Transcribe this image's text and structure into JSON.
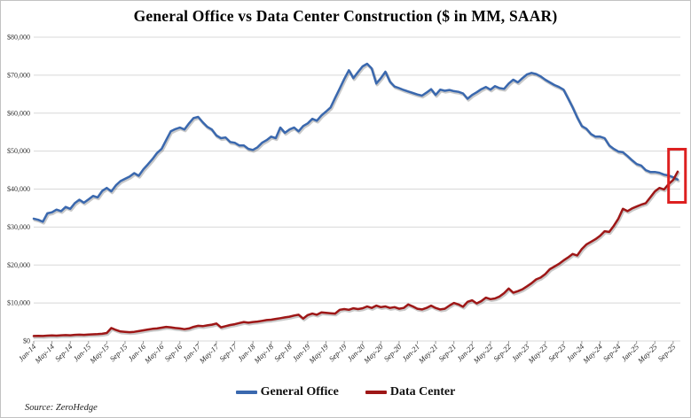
{
  "title": "General Office vs Data Center Construction ($ in MM, SAAR)",
  "source": "Source: ZeroHedge",
  "legend": [
    {
      "label": "General Office",
      "color": "#3a68ae"
    },
    {
      "label": "Data Center",
      "color": "#9e1717"
    }
  ],
  "chart_data": {
    "type": "line",
    "title": "General Office vs Data Center Construction ($ in MM, SAAR)",
    "xlabel": "",
    "ylabel": "",
    "x_unit": "month",
    "x_start": "Jan-14",
    "x_end": "Oct-25",
    "x_tick_every": 4,
    "x_tick_labels": [
      "Jan-14",
      "May-14",
      "Sep-14",
      "Jan-15",
      "May-15",
      "Sep-15",
      "Jan-16",
      "May-16",
      "Sep-16",
      "Jan-17",
      "May-17",
      "Sep-17",
      "Jan-18",
      "May-18",
      "Sep-18",
      "Jan-19",
      "May-19",
      "Sep-19",
      "Jan-20",
      "May-20",
      "Sep-20",
      "Jan-21",
      "May-21",
      "Sep-21",
      "Jan-22",
      "May-22",
      "Sep-22",
      "Jan-23",
      "May-23",
      "Sep-23",
      "Jan-24",
      "May-24",
      "Sep-24",
      "Jan-25",
      "May-25",
      "Sep-25"
    ],
    "ylim": [
      0,
      80000
    ],
    "y_tick_step": 10000,
    "y_tick_labels": [
      "$0",
      "$10,000",
      "$20,000",
      "$30,000",
      "$40,000",
      "$50,000",
      "$60,000",
      "$70,000",
      "$80,000"
    ],
    "grid": "horizontal",
    "gridline_color": "#d8d8d8",
    "legend_position": "bottom-center",
    "series": [
      {
        "name": "General Office",
        "color": "#3a68ae",
        "values": [
          32200,
          31900,
          31400,
          33600,
          33900,
          34600,
          34200,
          35300,
          34800,
          36300,
          37200,
          36400,
          37300,
          38200,
          37800,
          39500,
          40300,
          39400,
          41000,
          42100,
          42700,
          43300,
          44200,
          43500,
          45200,
          46500,
          47900,
          49500,
          50600,
          52900,
          55200,
          55800,
          56200,
          55700,
          57300,
          58700,
          59000,
          57600,
          56400,
          55700,
          54100,
          53400,
          53600,
          52400,
          52200,
          51500,
          51500,
          50600,
          50300,
          51000,
          52200,
          52900,
          53800,
          53400,
          56200,
          54800,
          55700,
          56200,
          55200,
          56600,
          57300,
          58500,
          58000,
          59400,
          60400,
          61500,
          64000,
          66500,
          69000,
          71300,
          69200,
          70800,
          72300,
          73000,
          71800,
          67800,
          69200,
          70900,
          68300,
          67000,
          66600,
          66100,
          65700,
          65300,
          64900,
          64600,
          65400,
          66300,
          64800,
          66200,
          65900,
          66100,
          65800,
          65600,
          65200,
          63800,
          64800,
          65500,
          66300,
          66900,
          66200,
          67100,
          66600,
          66400,
          67800,
          68800,
          68100,
          69200,
          70200,
          70600,
          70300,
          69700,
          68800,
          68100,
          67400,
          66900,
          66200,
          63900,
          61500,
          58900,
          56600,
          55900,
          54500,
          53800,
          53800,
          53400,
          51500,
          50600,
          49900,
          49700,
          48700,
          47600,
          46600,
          46200,
          45000,
          44500,
          44500,
          44300,
          43800,
          43600,
          43100,
          42500
        ]
      },
      {
        "name": "Data Center",
        "color": "#9e1717",
        "values": [
          1300,
          1350,
          1300,
          1400,
          1450,
          1400,
          1500,
          1550,
          1500,
          1600,
          1650,
          1600,
          1700,
          1750,
          1800,
          1900,
          2100,
          3400,
          2900,
          2500,
          2400,
          2300,
          2400,
          2600,
          2800,
          3000,
          3200,
          3300,
          3500,
          3700,
          3600,
          3400,
          3300,
          3100,
          3300,
          3700,
          4000,
          3900,
          4100,
          4300,
          4600,
          3600,
          3900,
          4200,
          4400,
          4700,
          5000,
          4800,
          5000,
          5100,
          5300,
          5500,
          5600,
          5800,
          6000,
          6200,
          6400,
          6700,
          6900,
          5900,
          6800,
          7200,
          6900,
          7500,
          7400,
          7300,
          7200,
          8200,
          8400,
          8200,
          8600,
          8400,
          8600,
          9100,
          8700,
          9300,
          8900,
          9100,
          8700,
          8900,
          8500,
          8700,
          9600,
          9100,
          8500,
          8300,
          8700,
          9300,
          8700,
          8300,
          8500,
          9300,
          10000,
          9600,
          9000,
          10300,
          10700,
          9900,
          10500,
          11400,
          11000,
          11200,
          11700,
          12600,
          13800,
          12700,
          13100,
          13600,
          14400,
          15200,
          16200,
          16700,
          17600,
          18900,
          19600,
          20300,
          21200,
          22000,
          22900,
          22500,
          24200,
          25400,
          26100,
          26800,
          27700,
          28900,
          28700,
          30300,
          32200,
          34800,
          34200,
          34900,
          35400,
          35900,
          36300,
          37800,
          39400,
          40300,
          39900,
          41300,
          42400,
          44600
        ]
      }
    ],
    "annotation": {
      "type": "rect",
      "description": "highlight box around the crossover of the two lines at the right edge",
      "color": "#dd2020",
      "x_index_start": 139.0,
      "x_index_end": 142.7,
      "y_min": 36500,
      "y_max": 50500
    }
  }
}
